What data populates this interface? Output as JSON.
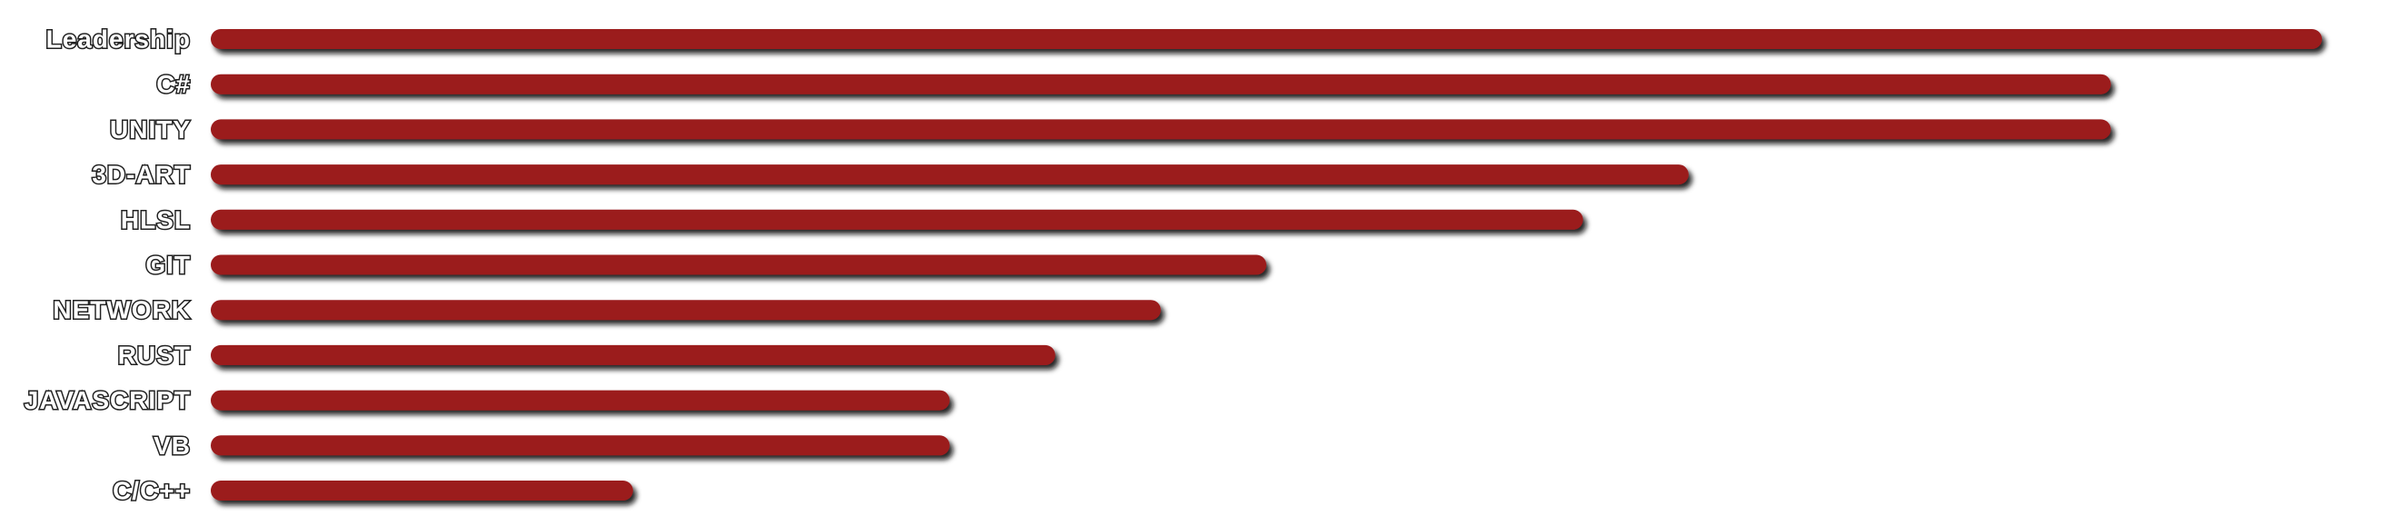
{
  "chart_data": {
    "type": "bar",
    "orientation": "horizontal",
    "categories": [
      "Leadership",
      "C#",
      "UNITY",
      "3D-ART",
      "HLSL",
      "GIT",
      "NETWORK",
      "RUST",
      "JAVASCRIPT",
      "VB",
      "C/C++"
    ],
    "values": [
      100,
      90,
      90,
      70,
      65,
      50,
      45,
      40,
      35,
      35,
      20
    ],
    "xlim": [
      0,
      100
    ],
    "title": "",
    "xlabel": "",
    "ylabel": "",
    "grid": false,
    "legend": "none",
    "bar_color": "#9b1a1e",
    "bar_shadow_color": "#111111",
    "label_color": "#ffffff",
    "label_outline_color": "#222222"
  }
}
